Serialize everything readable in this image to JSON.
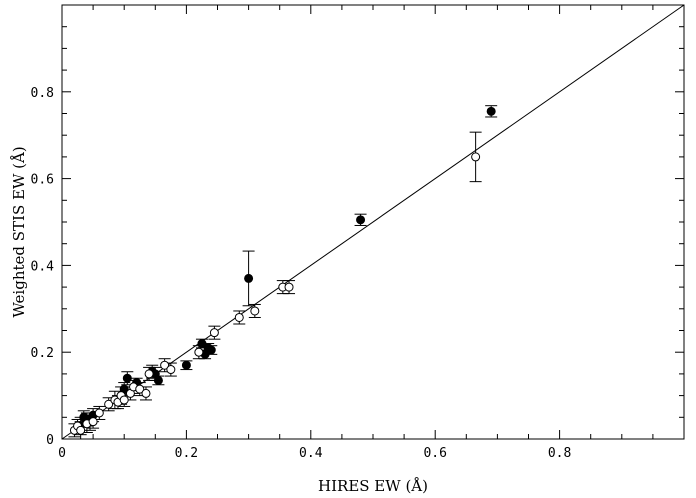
{
  "chart_data": {
    "type": "scatter",
    "title": "",
    "xlabel": "HIRES EW (Å)",
    "ylabel": "Weighted STIS EW (Å)",
    "xlim": [
      0,
      1.0
    ],
    "ylim": [
      0,
      1.0
    ],
    "xticks": [
      0,
      0.2,
      0.4,
      0.6,
      0.8
    ],
    "yticks": [
      0,
      0.2,
      0.4,
      0.6,
      0.8
    ],
    "x_tick_labels": [
      "0",
      "0.2",
      "0.4",
      "0.6",
      "0.8"
    ],
    "y_tick_labels": [
      "0",
      "0.2",
      "0.4",
      "0.6",
      "0.8"
    ],
    "grid": false,
    "reference_line": {
      "type": "y=x"
    },
    "series": [
      {
        "marker": "filled-circle",
        "points": [
          {
            "x": 0.03,
            "y": 0.03,
            "err": 0.02
          },
          {
            "x": 0.035,
            "y": 0.05,
            "err": 0.015
          },
          {
            "x": 0.04,
            "y": 0.045,
            "err": 0.015
          },
          {
            "x": 0.045,
            "y": 0.04,
            "err": 0.02
          },
          {
            "x": 0.05,
            "y": 0.055,
            "err": 0.015
          },
          {
            "x": 0.1,
            "y": 0.115,
            "err": 0.015
          },
          {
            "x": 0.105,
            "y": 0.14,
            "err": 0.015
          },
          {
            "x": 0.12,
            "y": 0.13,
            "err": 0.01
          },
          {
            "x": 0.145,
            "y": 0.155,
            "err": 0.015
          },
          {
            "x": 0.15,
            "y": 0.15,
            "err": 0.015
          },
          {
            "x": 0.155,
            "y": 0.135,
            "err": 0.01
          },
          {
            "x": 0.2,
            "y": 0.17,
            "err": 0.01
          },
          {
            "x": 0.225,
            "y": 0.22,
            "err": 0.01
          },
          {
            "x": 0.23,
            "y": 0.195,
            "err": 0.01
          },
          {
            "x": 0.235,
            "y": 0.21,
            "err": 0.01
          },
          {
            "x": 0.24,
            "y": 0.205,
            "err": 0.01
          },
          {
            "x": 0.3,
            "y": 0.37,
            "err": 0.063
          },
          {
            "x": 0.48,
            "y": 0.505,
            "err": 0.013
          },
          {
            "x": 0.69,
            "y": 0.755,
            "err": 0.013
          }
        ]
      },
      {
        "marker": "open-circle",
        "points": [
          {
            "x": 0.02,
            "y": 0.02,
            "err": 0.015
          },
          {
            "x": 0.025,
            "y": 0.03,
            "err": 0.015
          },
          {
            "x": 0.03,
            "y": 0.02,
            "err": 0.02
          },
          {
            "x": 0.04,
            "y": 0.035,
            "err": 0.02
          },
          {
            "x": 0.05,
            "y": 0.04,
            "err": 0.015
          },
          {
            "x": 0.06,
            "y": 0.06,
            "err": 0.015
          },
          {
            "x": 0.075,
            "y": 0.08,
            "err": 0.015
          },
          {
            "x": 0.085,
            "y": 0.09,
            "err": 0.02
          },
          {
            "x": 0.09,
            "y": 0.085,
            "err": 0.015
          },
          {
            "x": 0.095,
            "y": 0.1,
            "err": 0.02
          },
          {
            "x": 0.1,
            "y": 0.09,
            "err": 0.015
          },
          {
            "x": 0.11,
            "y": 0.105,
            "err": 0.015
          },
          {
            "x": 0.115,
            "y": 0.12,
            "err": 0.015
          },
          {
            "x": 0.125,
            "y": 0.115,
            "err": 0.015
          },
          {
            "x": 0.135,
            "y": 0.105,
            "err": 0.015
          },
          {
            "x": 0.14,
            "y": 0.15,
            "err": 0.015
          },
          {
            "x": 0.165,
            "y": 0.17,
            "err": 0.015
          },
          {
            "x": 0.175,
            "y": 0.16,
            "err": 0.015
          },
          {
            "x": 0.22,
            "y": 0.2,
            "err": 0.015
          },
          {
            "x": 0.245,
            "y": 0.245,
            "err": 0.015
          },
          {
            "x": 0.285,
            "y": 0.28,
            "err": 0.015
          },
          {
            "x": 0.31,
            "y": 0.295,
            "err": 0.015
          },
          {
            "x": 0.355,
            "y": 0.35,
            "err": 0.015
          },
          {
            "x": 0.365,
            "y": 0.35,
            "err": 0.015
          },
          {
            "x": 0.665,
            "y": 0.65,
            "err": 0.057
          }
        ]
      }
    ]
  }
}
